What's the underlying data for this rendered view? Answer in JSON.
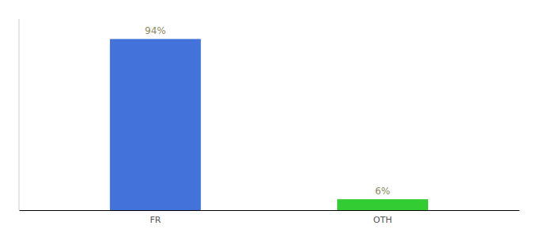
{
  "chart_data": {
    "type": "bar",
    "categories": [
      "FR",
      "OTH"
    ],
    "values": [
      94,
      6
    ],
    "colors": [
      "#4472db",
      "#33cc33"
    ],
    "value_labels": [
      "94%",
      "6%"
    ],
    "data_labels": true,
    "ylim": [
      0,
      105
    ],
    "tick_labels": "x"
  }
}
